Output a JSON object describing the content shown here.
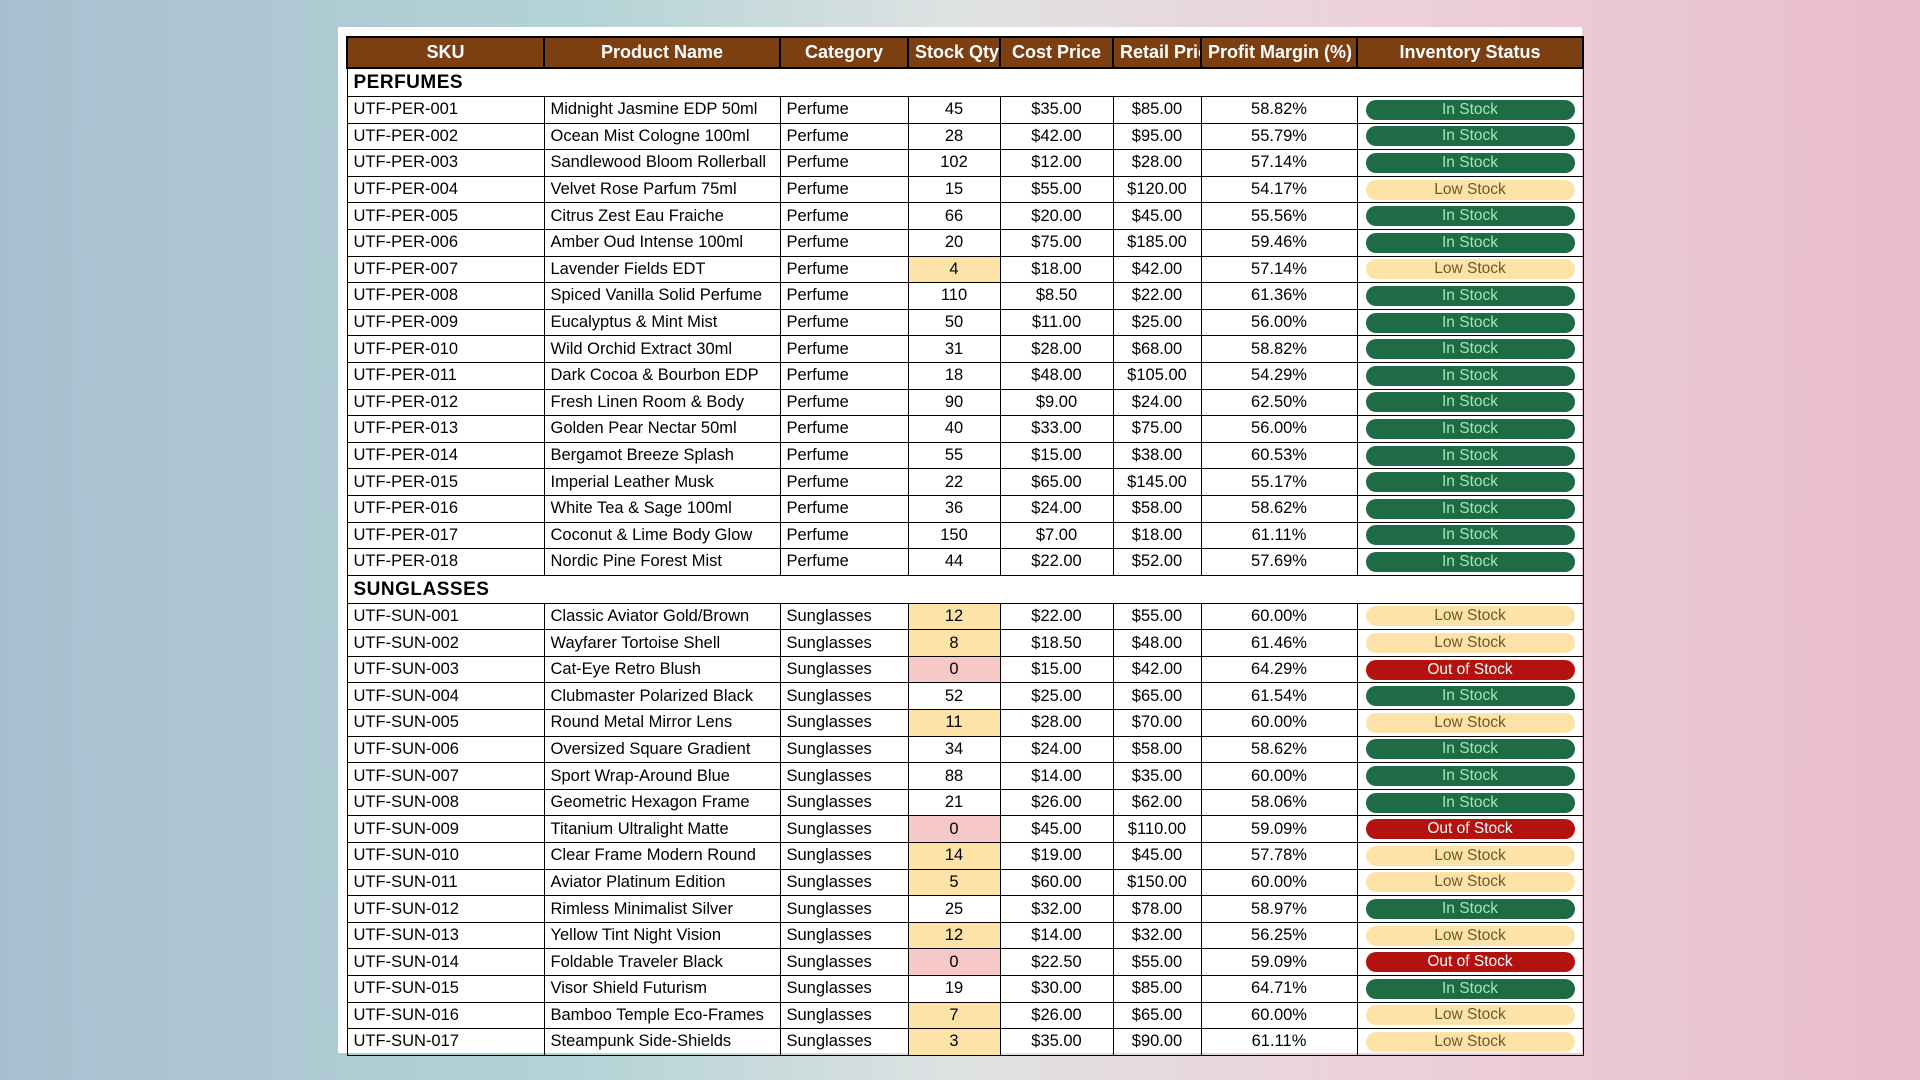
{
  "headers": [
    "SKU",
    "Product Name",
    "Category",
    "Stock Qty",
    "Cost Price",
    "Retail Price",
    "Profit Margin (%)",
    "Inventory Status"
  ],
  "sections": [
    {
      "title": "PERFUMES",
      "rows": [
        {
          "sku": "UTF-PER-001",
          "name": "Midnight Jasmine EDP 50ml",
          "category": "Perfume",
          "qty": "45",
          "cost": "$35.00",
          "retail": "$85.00",
          "margin": "58.82%",
          "status": "In Stock",
          "qty_flag": "",
          "status_kind": "in"
        },
        {
          "sku": "UTF-PER-002",
          "name": "Ocean Mist Cologne 100ml",
          "category": "Perfume",
          "qty": "28",
          "cost": "$42.00",
          "retail": "$95.00",
          "margin": "55.79%",
          "status": "In Stock",
          "qty_flag": "",
          "status_kind": "in"
        },
        {
          "sku": "UTF-PER-003",
          "name": "Sandlewood Bloom Rollerball",
          "category": "Perfume",
          "qty": "102",
          "cost": "$12.00",
          "retail": "$28.00",
          "margin": "57.14%",
          "status": "In Stock",
          "qty_flag": "",
          "status_kind": "in"
        },
        {
          "sku": "UTF-PER-004",
          "name": "Velvet Rose Parfum 75ml",
          "category": "Perfume",
          "qty": "15",
          "cost": "$55.00",
          "retail": "$120.00",
          "margin": "54.17%",
          "status": "Low Stock",
          "qty_flag": "",
          "status_kind": "low"
        },
        {
          "sku": "UTF-PER-005",
          "name": "Citrus Zest Eau Fraiche",
          "category": "Perfume",
          "qty": "66",
          "cost": "$20.00",
          "retail": "$45.00",
          "margin": "55.56%",
          "status": "In Stock",
          "qty_flag": "",
          "status_kind": "in"
        },
        {
          "sku": "UTF-PER-006",
          "name": "Amber Oud Intense 100ml",
          "category": "Perfume",
          "qty": "20",
          "cost": "$75.00",
          "retail": "$185.00",
          "margin": "59.46%",
          "status": "In Stock",
          "qty_flag": "",
          "status_kind": "in"
        },
        {
          "sku": "UTF-PER-007",
          "name": "Lavender Fields EDT",
          "category": "Perfume",
          "qty": "4",
          "cost": "$18.00",
          "retail": "$42.00",
          "margin": "57.14%",
          "status": "Low Stock",
          "qty_flag": "low",
          "status_kind": "low"
        },
        {
          "sku": "UTF-PER-008",
          "name": "Spiced Vanilla Solid Perfume",
          "category": "Perfume",
          "qty": "110",
          "cost": "$8.50",
          "retail": "$22.00",
          "margin": "61.36%",
          "status": "In Stock",
          "qty_flag": "",
          "status_kind": "in"
        },
        {
          "sku": "UTF-PER-009",
          "name": "Eucalyptus & Mint Mist",
          "category": "Perfume",
          "qty": "50",
          "cost": "$11.00",
          "retail": "$25.00",
          "margin": "56.00%",
          "status": "In Stock",
          "qty_flag": "",
          "status_kind": "in"
        },
        {
          "sku": "UTF-PER-010",
          "name": "Wild Orchid Extract 30ml",
          "category": "Perfume",
          "qty": "31",
          "cost": "$28.00",
          "retail": "$68.00",
          "margin": "58.82%",
          "status": "In Stock",
          "qty_flag": "",
          "status_kind": "in"
        },
        {
          "sku": "UTF-PER-011",
          "name": "Dark Cocoa & Bourbon EDP",
          "category": "Perfume",
          "qty": "18",
          "cost": "$48.00",
          "retail": "$105.00",
          "margin": "54.29%",
          "status": "In Stock",
          "qty_flag": "",
          "status_kind": "in"
        },
        {
          "sku": "UTF-PER-012",
          "name": "Fresh Linen Room & Body",
          "category": "Perfume",
          "qty": "90",
          "cost": "$9.00",
          "retail": "$24.00",
          "margin": "62.50%",
          "status": "In Stock",
          "qty_flag": "",
          "status_kind": "in"
        },
        {
          "sku": "UTF-PER-013",
          "name": "Golden Pear Nectar 50ml",
          "category": "Perfume",
          "qty": "40",
          "cost": "$33.00",
          "retail": "$75.00",
          "margin": "56.00%",
          "status": "In Stock",
          "qty_flag": "",
          "status_kind": "in"
        },
        {
          "sku": "UTF-PER-014",
          "name": "Bergamot Breeze Splash",
          "category": "Perfume",
          "qty": "55",
          "cost": "$15.00",
          "retail": "$38.00",
          "margin": "60.53%",
          "status": "In Stock",
          "qty_flag": "",
          "status_kind": "in"
        },
        {
          "sku": "UTF-PER-015",
          "name": "Imperial Leather Musk",
          "category": "Perfume",
          "qty": "22",
          "cost": "$65.00",
          "retail": "$145.00",
          "margin": "55.17%",
          "status": "In Stock",
          "qty_flag": "",
          "status_kind": "in"
        },
        {
          "sku": "UTF-PER-016",
          "name": "White Tea & Sage 100ml",
          "category": "Perfume",
          "qty": "36",
          "cost": "$24.00",
          "retail": "$58.00",
          "margin": "58.62%",
          "status": "In Stock",
          "qty_flag": "",
          "status_kind": "in"
        },
        {
          "sku": "UTF-PER-017",
          "name": "Coconut & Lime Body Glow",
          "category": "Perfume",
          "qty": "150",
          "cost": "$7.00",
          "retail": "$18.00",
          "margin": "61.11%",
          "status": "In Stock",
          "qty_flag": "",
          "status_kind": "in"
        },
        {
          "sku": "UTF-PER-018",
          "name": "Nordic Pine Forest Mist",
          "category": "Perfume",
          "qty": "44",
          "cost": "$22.00",
          "retail": "$52.00",
          "margin": "57.69%",
          "status": "In Stock",
          "qty_flag": "",
          "status_kind": "in"
        }
      ]
    },
    {
      "title": "SUNGLASSES",
      "rows": [
        {
          "sku": "UTF-SUN-001",
          "name": "Classic Aviator Gold/Brown",
          "category": "Sunglasses",
          "qty": "12",
          "cost": "$22.00",
          "retail": "$55.00",
          "margin": "60.00%",
          "status": "Low Stock",
          "qty_flag": "low",
          "status_kind": "low"
        },
        {
          "sku": "UTF-SUN-002",
          "name": "Wayfarer Tortoise Shell",
          "category": "Sunglasses",
          "qty": "8",
          "cost": "$18.50",
          "retail": "$48.00",
          "margin": "61.46%",
          "status": "Low Stock",
          "qty_flag": "low",
          "status_kind": "low"
        },
        {
          "sku": "UTF-SUN-003",
          "name": "Cat-Eye Retro Blush",
          "category": "Sunglasses",
          "qty": "0",
          "cost": "$15.00",
          "retail": "$42.00",
          "margin": "64.29%",
          "status": "Out of Stock",
          "qty_flag": "out",
          "status_kind": "out"
        },
        {
          "sku": "UTF-SUN-004",
          "name": "Clubmaster Polarized Black",
          "category": "Sunglasses",
          "qty": "52",
          "cost": "$25.00",
          "retail": "$65.00",
          "margin": "61.54%",
          "status": "In Stock",
          "qty_flag": "",
          "status_kind": "in"
        },
        {
          "sku": "UTF-SUN-005",
          "name": "Round Metal Mirror Lens",
          "category": "Sunglasses",
          "qty": "11",
          "cost": "$28.00",
          "retail": "$70.00",
          "margin": "60.00%",
          "status": "Low Stock",
          "qty_flag": "low",
          "status_kind": "low"
        },
        {
          "sku": "UTF-SUN-006",
          "name": "Oversized Square Gradient",
          "category": "Sunglasses",
          "qty": "34",
          "cost": "$24.00",
          "retail": "$58.00",
          "margin": "58.62%",
          "status": "In Stock",
          "qty_flag": "",
          "status_kind": "in"
        },
        {
          "sku": "UTF-SUN-007",
          "name": "Sport Wrap-Around Blue",
          "category": "Sunglasses",
          "qty": "88",
          "cost": "$14.00",
          "retail": "$35.00",
          "margin": "60.00%",
          "status": "In Stock",
          "qty_flag": "",
          "status_kind": "in"
        },
        {
          "sku": "UTF-SUN-008",
          "name": "Geometric Hexagon Frame",
          "category": "Sunglasses",
          "qty": "21",
          "cost": "$26.00",
          "retail": "$62.00",
          "margin": "58.06%",
          "status": "In Stock",
          "qty_flag": "",
          "status_kind": "in"
        },
        {
          "sku": "UTF-SUN-009",
          "name": "Titanium Ultralight Matte",
          "category": "Sunglasses",
          "qty": "0",
          "cost": "$45.00",
          "retail": "$110.00",
          "margin": "59.09%",
          "status": "Out of Stock",
          "qty_flag": "out",
          "status_kind": "out"
        },
        {
          "sku": "UTF-SUN-010",
          "name": "Clear Frame Modern Round",
          "category": "Sunglasses",
          "qty": "14",
          "cost": "$19.00",
          "retail": "$45.00",
          "margin": "57.78%",
          "status": "Low Stock",
          "qty_flag": "low",
          "status_kind": "low"
        },
        {
          "sku": "UTF-SUN-011",
          "name": "Aviator Platinum Edition",
          "category": "Sunglasses",
          "qty": "5",
          "cost": "$60.00",
          "retail": "$150.00",
          "margin": "60.00%",
          "status": "Low Stock",
          "qty_flag": "low",
          "status_kind": "low"
        },
        {
          "sku": "UTF-SUN-012",
          "name": "Rimless Minimalist Silver",
          "category": "Sunglasses",
          "qty": "25",
          "cost": "$32.00",
          "retail": "$78.00",
          "margin": "58.97%",
          "status": "In Stock",
          "qty_flag": "",
          "status_kind": "in"
        },
        {
          "sku": "UTF-SUN-013",
          "name": "Yellow Tint Night Vision",
          "category": "Sunglasses",
          "qty": "12",
          "cost": "$14.00",
          "retail": "$32.00",
          "margin": "56.25%",
          "status": "Low Stock",
          "qty_flag": "low",
          "status_kind": "low"
        },
        {
          "sku": "UTF-SUN-014",
          "name": "Foldable Traveler Black",
          "category": "Sunglasses",
          "qty": "0",
          "cost": "$22.50",
          "retail": "$55.00",
          "margin": "59.09%",
          "status": "Out of Stock",
          "qty_flag": "out",
          "status_kind": "out"
        },
        {
          "sku": "UTF-SUN-015",
          "name": "Visor Shield Futurism",
          "category": "Sunglasses",
          "qty": "19",
          "cost": "$30.00",
          "retail": "$85.00",
          "margin": "64.71%",
          "status": "In Stock",
          "qty_flag": "",
          "status_kind": "in"
        },
        {
          "sku": "UTF-SUN-016",
          "name": "Bamboo Temple Eco-Frames",
          "category": "Sunglasses",
          "qty": "7",
          "cost": "$26.00",
          "retail": "$65.00",
          "margin": "60.00%",
          "status": "Low Stock",
          "qty_flag": "low",
          "status_kind": "low"
        },
        {
          "sku": "UTF-SUN-017",
          "name": "Steampunk Side-Shields",
          "category": "Sunglasses",
          "qty": "3",
          "cost": "$35.00",
          "retail": "$90.00",
          "margin": "61.11%",
          "status": "Low Stock",
          "qty_flag": "low",
          "status_kind": "low"
        }
      ]
    }
  ]
}
